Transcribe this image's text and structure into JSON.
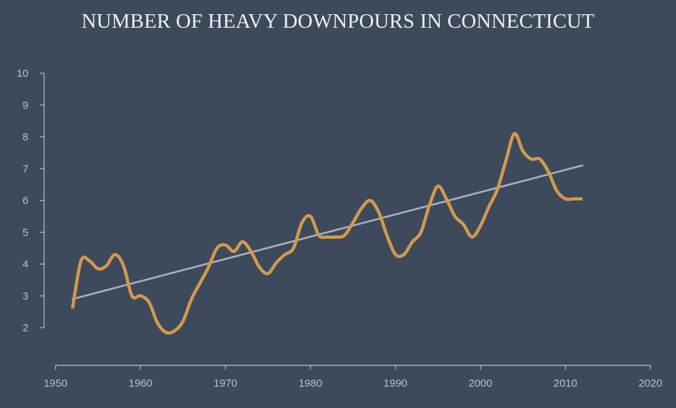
{
  "chart_data": {
    "type": "line",
    "title": "NUMBER OF HEAVY DOWNPOURS IN CONNECTICUT",
    "xlabel": "",
    "ylabel": "",
    "xlim": [
      1950,
      2020
    ],
    "ylim": [
      2,
      10
    ],
    "x_ticks": [
      1950,
      1960,
      1970,
      1980,
      1990,
      2000,
      2010,
      2020
    ],
    "y_ticks": [
      2,
      3,
      4,
      5,
      6,
      7,
      8,
      9,
      10
    ],
    "grid": false,
    "colors": {
      "series": "#d4994c",
      "trend": "#a9b0ba",
      "axis": "#b9c0c8",
      "background": "#3d4a5b",
      "title": "#eef0f2"
    },
    "series": [
      {
        "style": "smooth",
        "x": [
          1952,
          1953,
          1954,
          1955,
          1956,
          1957,
          1958,
          1959,
          1960,
          1961,
          1962,
          1963,
          1964,
          1965,
          1966,
          1967,
          1968,
          1969,
          1970,
          1971,
          1972,
          1973,
          1974,
          1975,
          1976,
          1977,
          1978,
          1979,
          1980,
          1981,
          1982,
          1983,
          1984,
          1985,
          1986,
          1987,
          1988,
          1989,
          1990,
          1991,
          1992,
          1993,
          1994,
          1995,
          1996,
          1997,
          1998,
          1999,
          2000,
          2001,
          2002,
          2003,
          2004,
          2005,
          2006,
          2007,
          2008,
          2009,
          2010,
          2011,
          2012
        ],
        "values": [
          2.6,
          4.1,
          4.1,
          3.85,
          3.95,
          4.3,
          3.95,
          3.0,
          3.0,
          2.8,
          2.15,
          1.85,
          1.9,
          2.2,
          2.9,
          3.4,
          3.9,
          4.5,
          4.6,
          4.4,
          4.7,
          4.4,
          3.9,
          3.7,
          4.05,
          4.3,
          4.5,
          5.3,
          5.5,
          4.9,
          4.85,
          4.85,
          4.9,
          5.3,
          5.75,
          6.0,
          5.65,
          4.9,
          4.3,
          4.3,
          4.7,
          5.0,
          5.85,
          6.45,
          6.05,
          5.5,
          5.25,
          4.85,
          5.2,
          5.8,
          6.35,
          7.25,
          8.1,
          7.55,
          7.3,
          7.3,
          6.9,
          6.3,
          6.05,
          6.05,
          6.05
        ]
      },
      {
        "style": "trend",
        "x": [
          1952,
          2012
        ],
        "values": [
          2.9,
          7.1
        ]
      }
    ]
  }
}
